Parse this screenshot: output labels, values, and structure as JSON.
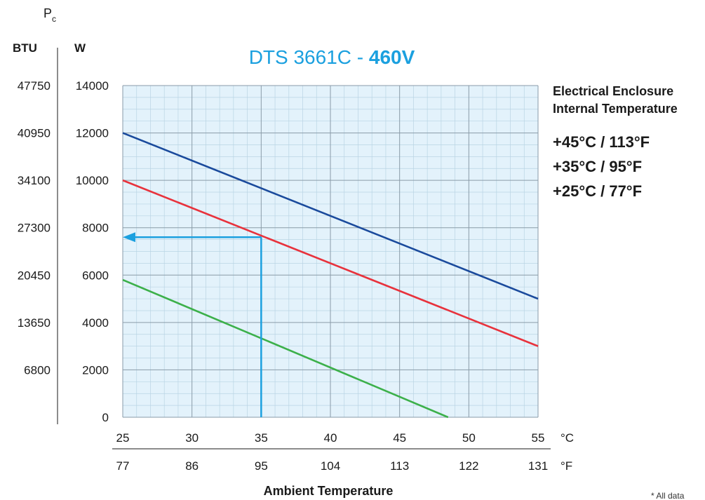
{
  "chart_data": {
    "type": "line",
    "title": "DTS 3661C - ",
    "title_bold": "460V",
    "y_symbol": "P",
    "y_symbol_sub": "c",
    "y_unit_left": "BTU",
    "y_unit_right": "W",
    "yticks_w": [
      "0",
      "2000",
      "4000",
      "6000",
      "8000",
      "10000",
      "12000",
      "14000"
    ],
    "yticks_btu": [
      "",
      "6800",
      "13650",
      "20450",
      "27300",
      "34100",
      "40950",
      "47750"
    ],
    "ylim": [
      0,
      14000
    ],
    "xlim": [
      25,
      55
    ],
    "xticks_c": [
      "25",
      "30",
      "35",
      "40",
      "45",
      "50",
      "55"
    ],
    "xticks_f": [
      "77",
      "86",
      "95",
      "104",
      "113",
      "122",
      "131"
    ],
    "x_unit_c": "°C",
    "x_unit_f": "°F",
    "xlabel": "Ambient Temperature",
    "legend_title_line1": "Electrical Enclosure",
    "legend_title_line2": "Internal Temperature",
    "grid": true,
    "legend_position": "right",
    "series": [
      {
        "name": "+45°C / 113°F",
        "color": "#1a4a9c",
        "x": [
          25,
          55
        ],
        "y": [
          12000,
          5000
        ]
      },
      {
        "name": "+35°C / 95°F",
        "color": "#e8323c",
        "x": [
          25,
          55
        ],
        "y": [
          10000,
          3000
        ]
      },
      {
        "name": "+25°C / 77°F",
        "color": "#3cb04a",
        "x": [
          25,
          48.5
        ],
        "y": [
          5800,
          0
        ]
      }
    ],
    "example_reading": {
      "x": 35,
      "y": 7600,
      "color": "#1ba0df"
    },
    "footnote": "* All data"
  }
}
